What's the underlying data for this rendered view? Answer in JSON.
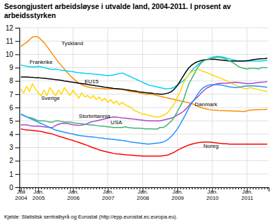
{
  "chart_data": {
    "type": "line",
    "title": "Sesongjustert arbeidsløyse i utvalde land, 2004-2011. I prosent av\narbeidsstyrken",
    "source": "Kjelde: Statistisk sentralbyrå og Eurostat (http://epp.eurostat.ec.europa.eu).",
    "categories": [
      "Juli\n2004",
      null,
      null,
      null,
      null,
      null,
      "Jan.\n2005",
      null,
      null,
      null,
      null,
      null,
      null,
      null,
      null,
      null,
      null,
      null,
      "Jan.\n2006",
      null,
      null,
      null,
      null,
      null,
      null,
      null,
      null,
      null,
      null,
      null,
      "Jan.\n2007",
      null,
      null,
      null,
      null,
      null,
      null,
      null,
      null,
      null,
      null,
      null,
      "Jan.\n2008",
      null,
      null,
      null,
      null,
      null,
      null,
      null,
      null,
      null,
      null,
      null,
      "Jan.\n2009",
      null,
      null,
      null,
      null,
      null,
      null,
      null,
      null,
      null,
      null,
      null,
      "Jan.\n2010",
      null,
      null,
      null,
      null,
      null,
      null,
      null,
      null,
      null,
      null,
      null,
      "Jan.\n2011",
      null,
      null,
      null,
      null,
      null,
      null,
      null
    ],
    "ylim": [
      0,
      12
    ],
    "yticks": [
      0,
      1,
      2,
      3,
      4,
      5,
      6,
      7,
      8,
      9,
      10,
      11,
      12
    ],
    "grid": true,
    "series": [
      {
        "name": "Tyskland",
        "color": "#FF8C00",
        "values": [
          10.6,
          10.75,
          10.9,
          11.1,
          11.3,
          11.35,
          11.3,
          11.1,
          10.9,
          10.6,
          10.3,
          10.0,
          9.7,
          9.4,
          9.15,
          8.9,
          8.65,
          8.4,
          8.2,
          8.0,
          7.85,
          7.72,
          7.62,
          7.55,
          7.5,
          7.48,
          7.46,
          7.44,
          7.42,
          7.4,
          7.4,
          7.4,
          7.42,
          7.4,
          7.38,
          7.35,
          7.3,
          7.25,
          7.2,
          7.18,
          7.15,
          7.1,
          7.05,
          7.0,
          7.0,
          7.0,
          6.95,
          6.9,
          6.85,
          6.8,
          6.75,
          6.7,
          6.65,
          6.6,
          6.55,
          6.5,
          6.45,
          6.4,
          6.35,
          6.3,
          6.2,
          6.1,
          6.0,
          5.95,
          5.9,
          5.85,
          5.82,
          5.8,
          5.78,
          5.77,
          5.76,
          5.75,
          5.75,
          5.74,
          5.73,
          5.72,
          5.71,
          5.7,
          5.75,
          5.8,
          5.82,
          5.83,
          5.84,
          5.85,
          5.86,
          5.87
        ]
      },
      {
        "name": "Frankrike",
        "color": "#00CFFF",
        "values": [
          9.2,
          9.15,
          9.1,
          9.08,
          9.05,
          9.05,
          9.1,
          9.05,
          9.0,
          8.95,
          8.9,
          8.85,
          8.9,
          8.85,
          8.8,
          8.78,
          8.75,
          8.72,
          8.7,
          8.65,
          8.62,
          8.6,
          8.58,
          8.55,
          8.55,
          8.52,
          8.5,
          8.48,
          8.45,
          8.42,
          8.4,
          8.42,
          8.45,
          8.5,
          8.55,
          8.6,
          8.5,
          8.4,
          8.3,
          8.2,
          8.1,
          8.0,
          7.9,
          7.8,
          7.7,
          7.65,
          7.6,
          7.55,
          7.5,
          7.45,
          7.4,
          7.42,
          7.45,
          7.55,
          7.7,
          7.85,
          8.0,
          8.2,
          8.5,
          8.8,
          9.0,
          9.2,
          9.4,
          9.5,
          9.6,
          9.7,
          9.78,
          9.82,
          9.85,
          9.82,
          9.78,
          9.72,
          9.65,
          9.6,
          9.55,
          9.5,
          9.5,
          9.5,
          9.5,
          9.5,
          9.5,
          9.5,
          9.5,
          9.5,
          9.52,
          9.55
        ]
      },
      {
        "name": "EU15",
        "color": "#000000",
        "values": [
          8.3,
          8.3,
          8.3,
          8.28,
          8.27,
          8.25,
          8.25,
          8.22,
          8.2,
          8.18,
          8.15,
          8.12,
          8.1,
          8.08,
          8.05,
          8.0,
          7.97,
          7.93,
          7.9,
          7.87,
          7.83,
          7.8,
          7.77,
          7.73,
          7.7,
          7.67,
          7.63,
          7.6,
          7.57,
          7.53,
          7.5,
          7.47,
          7.44,
          7.42,
          7.4,
          7.38,
          7.35,
          7.32,
          7.28,
          7.25,
          7.22,
          7.18,
          7.15,
          7.12,
          7.1,
          7.08,
          7.05,
          7.03,
          7.0,
          7.0,
          7.05,
          7.1,
          7.2,
          7.4,
          7.65,
          8.0,
          8.35,
          8.7,
          9.0,
          9.2,
          9.35,
          9.45,
          9.52,
          9.57,
          9.6,
          9.62,
          9.63,
          9.62,
          9.6,
          9.58,
          9.55,
          9.52,
          9.5,
          9.5,
          9.5,
          9.5,
          9.5,
          9.5,
          9.52,
          9.55,
          9.6,
          9.63,
          9.65,
          9.67,
          9.68,
          9.7
        ]
      },
      {
        "name": "Sverige",
        "color": "#FFD700",
        "values": [
          7.4,
          7.1,
          7.6,
          7.2,
          7.8,
          7.4,
          7.1,
          6.9,
          7.3,
          6.9,
          7.5,
          7.2,
          6.9,
          7.3,
          7.0,
          7.5,
          7.2,
          6.9,
          7.3,
          7.0,
          6.7,
          7.1,
          6.8,
          6.9,
          6.7,
          6.9,
          6.6,
          6.8,
          6.5,
          6.7,
          6.4,
          6.6,
          6.3,
          6.5,
          6.2,
          6.4,
          6.2,
          6.1,
          6.0,
          5.8,
          5.7,
          5.6,
          5.5,
          5.5,
          5.4,
          5.4,
          5.3,
          5.3,
          5.3,
          5.4,
          5.5,
          5.7,
          6.0,
          6.3,
          6.8,
          7.2,
          7.8,
          8.2,
          8.5,
          8.7,
          8.8,
          8.9,
          8.8,
          8.7,
          8.65,
          8.55,
          8.45,
          8.35,
          8.3,
          8.2,
          8.1,
          8.0,
          7.9,
          7.8,
          7.7,
          7.6,
          7.5,
          7.45,
          7.4,
          7.5,
          7.45,
          7.4,
          7.35,
          7.3,
          7.25,
          7.2
        ]
      },
      {
        "name": "Storbritannia",
        "color": "#AA44CC",
        "values": [
          4.7,
          4.7,
          4.7,
          4.65,
          4.6,
          4.6,
          4.6,
          4.58,
          4.55,
          4.52,
          4.5,
          4.5,
          4.65,
          4.75,
          4.8,
          4.82,
          4.8,
          4.75,
          4.7,
          4.68,
          4.65,
          4.68,
          4.72,
          4.8,
          4.9,
          4.95,
          5.0,
          5.05,
          5.1,
          5.15,
          5.2,
          5.25,
          5.3,
          5.28,
          5.25,
          5.22,
          5.2,
          5.18,
          5.15,
          5.12,
          5.1,
          5.08,
          5.05,
          5.02,
          5.0,
          5.0,
          5.0,
          5.0,
          5.0,
          5.05,
          5.1,
          5.15,
          5.2,
          5.3,
          5.45,
          5.55,
          5.7,
          5.9,
          6.15,
          6.4,
          6.6,
          6.8,
          7.05,
          7.25,
          7.45,
          7.55,
          7.65,
          7.75,
          7.8,
          7.82,
          7.83,
          7.83,
          7.85,
          7.88,
          7.9,
          7.88,
          7.85,
          7.82,
          7.8,
          7.8,
          7.82,
          7.85,
          7.88,
          7.9,
          7.92,
          7.95
        ]
      },
      {
        "name": "USA",
        "color": "#3CB371",
        "values": [
          5.5,
          5.4,
          5.3,
          5.25,
          5.2,
          5.1,
          5.0,
          5.0,
          5.0,
          4.95,
          4.9,
          4.9,
          5.0,
          5.0,
          4.95,
          4.92,
          4.9,
          4.9,
          4.85,
          4.82,
          4.8,
          4.78,
          4.75,
          4.72,
          4.7,
          4.68,
          4.65,
          4.62,
          4.6,
          4.58,
          4.55,
          4.52,
          4.5,
          4.5,
          4.5,
          4.5,
          4.55,
          4.5,
          4.48,
          4.45,
          4.45,
          4.45,
          4.42,
          4.4,
          4.4,
          4.4,
          4.38,
          4.38,
          4.5,
          4.5,
          4.6,
          4.8,
          5.0,
          5.3,
          5.7,
          6.1,
          6.5,
          7.2,
          7.8,
          8.2,
          8.6,
          9.0,
          9.3,
          9.5,
          9.6,
          9.65,
          9.7,
          9.75,
          9.8,
          9.75,
          9.7,
          9.6,
          9.5,
          9.4,
          9.25,
          9.1,
          9.0,
          8.95,
          8.9,
          8.95,
          8.95,
          8.95,
          8.9,
          9.0,
          9.0,
          9.0
        ]
      },
      {
        "name": "Danmark",
        "color": "#1E90FF",
        "values": [
          5.5,
          5.4,
          5.3,
          5.2,
          5.1,
          5.0,
          4.9,
          4.8,
          4.7,
          4.6,
          4.5,
          4.4,
          4.3,
          4.25,
          4.2,
          4.15,
          4.1,
          4.05,
          4.0,
          3.95,
          3.9,
          3.88,
          3.85,
          3.82,
          3.8,
          3.78,
          3.75,
          3.72,
          3.7,
          3.67,
          3.65,
          3.62,
          3.6,
          3.57,
          3.55,
          3.52,
          3.5,
          3.45,
          3.4,
          3.38,
          3.35,
          3.32,
          3.3,
          3.28,
          3.25,
          3.28,
          3.3,
          3.32,
          3.35,
          3.4,
          3.5,
          3.65,
          3.85,
          4.1,
          4.4,
          4.75,
          5.15,
          5.55,
          6.0,
          6.35,
          6.65,
          7.0,
          7.3,
          7.5,
          7.62,
          7.7,
          7.72,
          7.72,
          7.72,
          7.7,
          7.65,
          7.6,
          7.55,
          7.52,
          7.5,
          7.52,
          7.55,
          7.6,
          7.62,
          7.63,
          7.63,
          7.62,
          7.6,
          7.58,
          7.55,
          7.52
        ]
      },
      {
        "name": "Noreg",
        "color": "#FF0000",
        "values": [
          4.4,
          4.35,
          4.3,
          4.3,
          4.28,
          4.25,
          4.22,
          4.2,
          4.15,
          4.1,
          4.05,
          4.0,
          3.92,
          3.85,
          3.78,
          3.72,
          3.65,
          3.58,
          3.52,
          3.45,
          3.38,
          3.3,
          3.22,
          3.15,
          3.05,
          2.97,
          2.9,
          2.82,
          2.75,
          2.7,
          2.65,
          2.6,
          2.55,
          2.52,
          2.5,
          2.48,
          2.45,
          2.43,
          2.42,
          2.4,
          2.38,
          2.37,
          2.35,
          2.35,
          2.35,
          2.35,
          2.35,
          2.35,
          2.35,
          2.37,
          2.4,
          2.45,
          2.55,
          2.65,
          2.78,
          2.9,
          3.0,
          3.1,
          3.18,
          3.25,
          3.3,
          3.35,
          3.38,
          3.4,
          3.4,
          3.4,
          3.38,
          3.35,
          3.32,
          3.3,
          3.28,
          3.27,
          3.25,
          3.25,
          3.25,
          3.25,
          3.25,
          3.25,
          3.25,
          3.25,
          3.25,
          3.25,
          3.25,
          3.25,
          3.25,
          3.25
        ]
      }
    ],
    "annotations": [
      {
        "text": "Tyskland",
        "x": 14,
        "y": 10.8
      },
      {
        "text": "Frankrike",
        "x": 3,
        "y": 9.4
      },
      {
        "text": "EU15",
        "x": 22,
        "y": 7.95
      },
      {
        "text": "Sverige",
        "x": 7,
        "y": 6.7
      },
      {
        "text": "Storbritannia",
        "x": 20,
        "y": 5.35
      },
      {
        "text": "USA",
        "x": 31,
        "y": 4.85
      },
      {
        "text": "Danmark",
        "x": 60,
        "y": 6.2
      },
      {
        "text": "Noreg",
        "x": 63,
        "y": 3.1
      }
    ]
  }
}
